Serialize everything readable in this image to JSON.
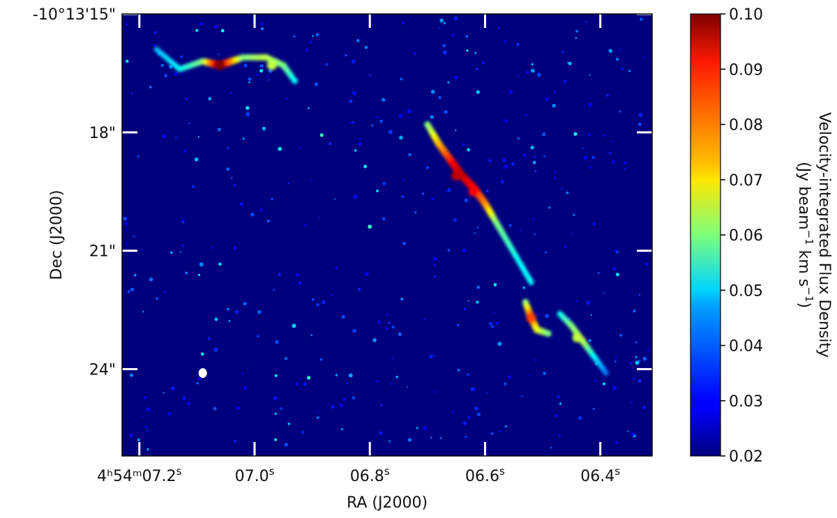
{
  "chart_data": {
    "type": "heatmap",
    "title": "",
    "xlabel": "RA (J2000)",
    "ylabel": "Dec (J2000)",
    "xlim_s": [
      7.23,
      6.31
    ],
    "ylim_arcsec": [
      15.0,
      26.2
    ],
    "x_ticks": [
      {
        "value": 7.2,
        "label_main": "4ʰ54ᵐ07.2",
        "label_sup": "s"
      },
      {
        "value": 7.0,
        "label_main": "07.0",
        "label_sup": "s"
      },
      {
        "value": 6.8,
        "label_main": "06.8",
        "label_sup": "s"
      },
      {
        "value": 6.6,
        "label_main": "06.6",
        "label_sup": "s"
      },
      {
        "value": 6.4,
        "label_main": "06.4",
        "label_sup": "s"
      }
    ],
    "y_ticks": [
      {
        "value": 15,
        "label": "-10°13'15\""
      },
      {
        "value": 18,
        "label": "18\""
      },
      {
        "value": 21,
        "label": "21\""
      },
      {
        "value": 24,
        "label": "24\""
      }
    ],
    "colorbar": {
      "colormap": "jet",
      "min": 0.02,
      "max": 0.1,
      "ticks": [
        {
          "value": 0.02,
          "label": "0.02"
        },
        {
          "value": 0.03,
          "label": "0.03"
        },
        {
          "value": 0.04,
          "label": "0.04"
        },
        {
          "value": 0.05,
          "label": "0.05"
        },
        {
          "value": 0.06,
          "label": "0.06"
        },
        {
          "value": 0.07,
          "label": "0.07"
        },
        {
          "value": 0.08,
          "label": "0.08"
        },
        {
          "value": 0.09,
          "label": "0.09"
        },
        {
          "value": 0.1,
          "label": "0.10"
        }
      ],
      "label_line1": "Velocity-integrated Flux Density",
      "label_line2_prefix": "(Jy beam",
      "label_sup1": "−1",
      "label_line2_mid": " km s",
      "label_sup2": "−1",
      "label_line2_suffix": ")"
    },
    "features": [
      {
        "name": "jet-knot-northwest",
        "ra_s": 7.06,
        "dec_arcsec": 16.3,
        "peak": 0.1
      },
      {
        "name": "jet-arc-northwest",
        "ra_s": 6.97,
        "dec_arcsec": 16.3,
        "peak": 0.065
      },
      {
        "name": "outflow-filament-center",
        "ra_s": 6.65,
        "dec_arcsec": 19.1,
        "peak": 0.095
      },
      {
        "name": "outflow-filament-center-2",
        "ra_s": 6.62,
        "dec_arcsec": 19.5,
        "peak": 0.09
      },
      {
        "name": "outflow-knot-southeast",
        "ra_s": 6.52,
        "dec_arcsec": 22.7,
        "peak": 0.085
      },
      {
        "name": "outflow-tail-southeast",
        "ra_s": 6.44,
        "dec_arcsec": 23.2,
        "peak": 0.065
      }
    ],
    "beam": {
      "ra_s": 7.09,
      "dec_arcsec": 24.1,
      "color": "#ffffff"
    },
    "colors": {
      "background": "#00007f",
      "frame": "#000000",
      "tick_inner": "#ffffff"
    }
  }
}
